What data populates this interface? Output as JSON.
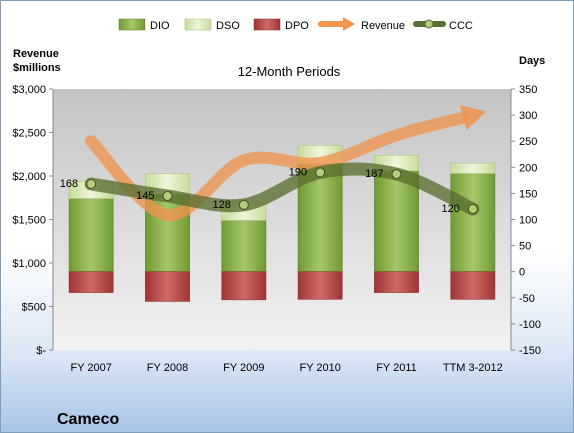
{
  "chart_data": {
    "type": "bar",
    "title": "12-Month Periods",
    "company": "Cameco",
    "categories": [
      "FY 2007",
      "FY 2008",
      "FY 2009",
      "FY 2010",
      "FY 2011",
      "TTM 3-2012"
    ],
    "left_axis": {
      "label_line1": "Revenue",
      "label_line2": "$millions",
      "ylim": [
        0,
        3000
      ],
      "ticks": [
        0,
        500,
        1000,
        1500,
        2000,
        2500,
        3000
      ],
      "tick_labels": [
        "$-",
        "$500",
        "$1,000",
        "$1,500",
        "$2,000",
        "$2,500",
        "$3,000"
      ]
    },
    "right_axis": {
      "label": "Days",
      "ylim": [
        -150,
        350
      ],
      "ticks": [
        -150,
        -100,
        -50,
        0,
        50,
        100,
        150,
        200,
        250,
        300,
        350
      ],
      "tick_labels": [
        "-150",
        "-100",
        "-50",
        "0",
        "50",
        "100",
        "150",
        "200",
        "250",
        "300",
        "350"
      ]
    },
    "legend": [
      "DIO",
      "DSO",
      "DPO",
      "Revenue",
      "CCC"
    ],
    "legend_position": "top",
    "series": [
      {
        "name": "DIO",
        "axis": "right",
        "values": [
          140,
          148,
          98,
          207,
          193,
          188
        ]
      },
      {
        "name": "DSO",
        "axis": "right",
        "values": [
          33,
          40,
          34,
          35,
          30,
          20
        ]
      },
      {
        "name": "DPO",
        "axis": "right",
        "values": [
          -40,
          -57,
          -54,
          -53,
          -40,
          -53
        ]
      },
      {
        "name": "Revenue",
        "axis": "left",
        "values": [
          2400,
          1550,
          2180,
          2150,
          2470,
          2700
        ]
      },
      {
        "name": "CCC",
        "axis": "right",
        "values": [
          168,
          145,
          128,
          190,
          187,
          120
        ]
      }
    ],
    "ccc_labels": [
      "168",
      "145",
      "128",
      "190",
      "187",
      "120"
    ],
    "grid": false,
    "colors": {
      "DIO": "#8fb44a",
      "DSO": "#d8e7b4",
      "DPO": "#b94a48",
      "Revenue": "#f0944e",
      "CCC": "#5a6e2e",
      "plot_background": "#c9c9c9"
    }
  }
}
